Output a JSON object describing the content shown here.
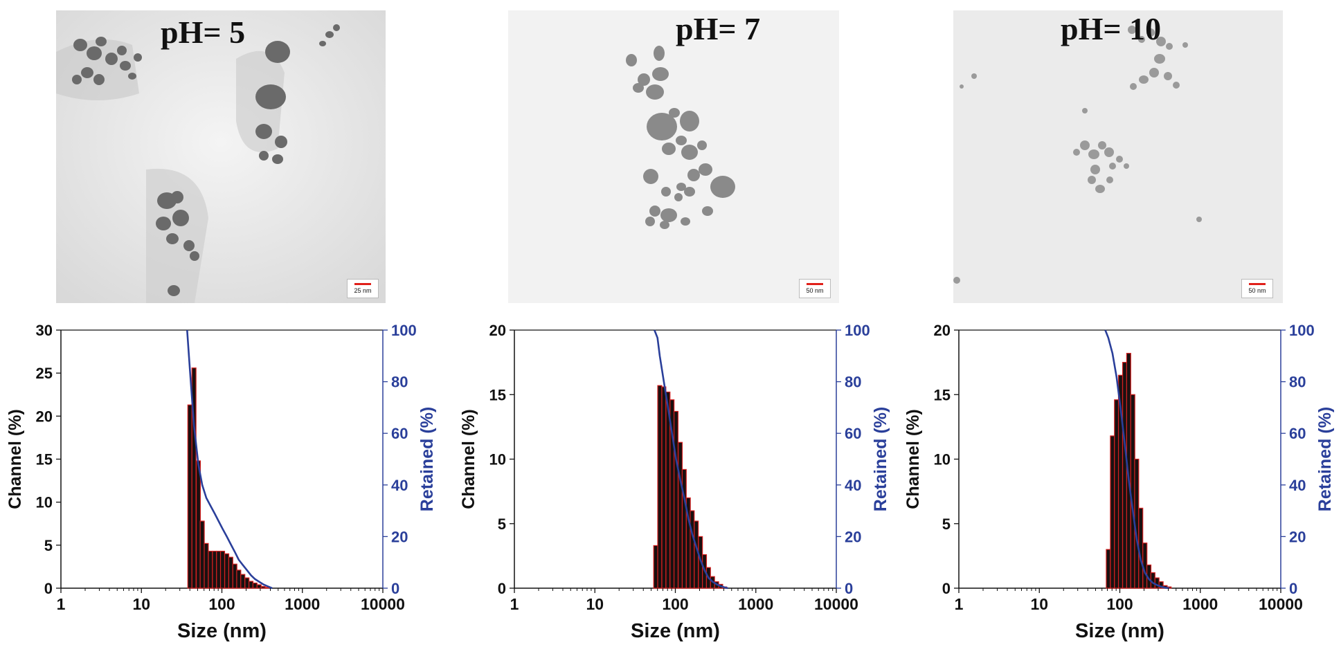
{
  "colors": {
    "bar_fill": "#1a1010",
    "bar_edge": "#d42020",
    "retained_line": "#2a3f9a",
    "axis_right": "#2a3f9a",
    "axis_left": "#111111"
  },
  "panels": [
    {
      "title": "pH= 5",
      "scale_label": "25 nm",
      "chart_data": {
        "type": "bar",
        "xscale": "log",
        "xlim": [
          1,
          10000
        ],
        "xticks": [
          "1",
          "10",
          "100",
          "1000",
          "10000"
        ],
        "xlabel": "Size (nm)",
        "ylabel": "Channel (%)",
        "ylim": [
          0,
          30
        ],
        "yticks": [
          "0",
          "5",
          "10",
          "15",
          "20",
          "25",
          "30"
        ],
        "y2label": "Retained (%)",
        "y2lim": [
          0,
          100
        ],
        "y2ticks": [
          "0",
          "20",
          "40",
          "60",
          "80",
          "100"
        ],
        "series": [
          {
            "name": "Channel (%)",
            "type": "bar",
            "x": [
              40,
              45,
              51,
              57,
              64,
              72,
              81,
              91,
              102,
              115,
              129,
              145,
              162,
              182,
              205,
              230,
              258,
              290,
              326,
              366
            ],
            "values": [
              21.3,
              25.6,
              14.8,
              7.8,
              5.2,
              4.3,
              4.3,
              4.3,
              4.3,
              4.0,
              3.6,
              2.8,
              2.1,
              1.6,
              1.2,
              0.8,
              0.6,
              0.4,
              0.2,
              0.1
            ]
          },
          {
            "name": "Retained (%)",
            "type": "line",
            "axis": "right",
            "x": [
              37,
              40,
              45,
              51,
              57,
              64,
              72,
              81,
              91,
              102,
              115,
              129,
              145,
              162,
              182,
              205,
              230,
              258,
              290,
              326,
              366,
              420
            ],
            "values": [
              100,
              85,
              63,
              48,
              40,
              35,
              32,
              29,
              26,
              23,
              20,
              17,
              14,
              11,
              9,
              7,
              5,
              3.5,
              2.5,
              1.5,
              0.8,
              0
            ]
          }
        ]
      }
    },
    {
      "title": "pH= 7",
      "scale_label": "50 nm",
      "chart_data": {
        "type": "bar",
        "xscale": "log",
        "xlim": [
          1,
          10000
        ],
        "xticks": [
          "1",
          "10",
          "100",
          "1000",
          "10000"
        ],
        "xlabel": "Size (nm)",
        "ylabel": "Channel (%)",
        "ylim": [
          0,
          20
        ],
        "yticks": [
          "0",
          "5",
          "10",
          "15",
          "20"
        ],
        "y2label": "Retained (%)",
        "y2lim": [
          0,
          100
        ],
        "y2ticks": [
          "0",
          "20",
          "40",
          "60",
          "80",
          "100"
        ],
        "series": [
          {
            "name": "Channel (%)",
            "type": "bar",
            "x": [
              57,
              64,
              72,
              81,
              91,
              102,
              115,
              129,
              145,
              162,
              182,
              205,
              230,
              258,
              290,
              326,
              366,
              410
            ],
            "values": [
              3.3,
              15.7,
              15.6,
              15.2,
              14.6,
              13.7,
              11.3,
              9.2,
              7.0,
              6.0,
              5.2,
              4.0,
              2.6,
              1.6,
              0.9,
              0.5,
              0.3,
              0.1
            ]
          },
          {
            "name": "Retained (%)",
            "type": "line",
            "axis": "right",
            "x": [
              55,
              60,
              64,
              72,
              81,
              91,
              102,
              115,
              129,
              145,
              162,
              182,
              205,
              230,
              258,
              290,
              326,
              366,
              410,
              450
            ],
            "values": [
              100,
              97,
              90,
              80,
              70,
              60,
              50,
              42,
              35,
              27,
              21,
              16,
              11,
              7,
              4,
              2.5,
              1.5,
              0.8,
              0.3,
              0
            ]
          }
        ]
      }
    },
    {
      "title": "pH= 10",
      "scale_label": "50 nm",
      "chart_data": {
        "type": "bar",
        "xscale": "log",
        "xlim": [
          1,
          10000
        ],
        "xticks": [
          "1",
          "10",
          "100",
          "1000",
          "10000"
        ],
        "xlabel": "Size (nm)",
        "ylabel": "Channel (%)",
        "ylim": [
          0,
          20
        ],
        "yticks": [
          "0",
          "5",
          "10",
          "15",
          "20"
        ],
        "y2label": "Retained (%)",
        "y2lim": [
          0,
          100
        ],
        "y2ticks": [
          "0",
          "20",
          "40",
          "60",
          "80",
          "100"
        ],
        "series": [
          {
            "name": "Channel (%)",
            "type": "bar",
            "x": [
              72,
              81,
              91,
              102,
              115,
              129,
              145,
              162,
              182,
              205,
              230,
              258,
              290,
              326,
              366,
              410
            ],
            "values": [
              3.0,
              11.8,
              14.6,
              16.5,
              17.5,
              18.2,
              15.0,
              10.0,
              6.2,
              3.5,
              1.8,
              1.2,
              0.8,
              0.5,
              0.2,
              0.1
            ]
          },
          {
            "name": "Retained (%)",
            "type": "line",
            "axis": "right",
            "x": [
              66,
              72,
              81,
              91,
              102,
              115,
              129,
              145,
              162,
              182,
              205,
              230,
              258,
              290,
              326,
              366,
              410
            ],
            "values": [
              100,
              97,
              91,
              82,
              70,
              56,
              42,
              30,
              19,
              11,
              6,
              3.5,
              2,
              1.2,
              0.6,
              0.2,
              0
            ]
          }
        ]
      }
    }
  ]
}
